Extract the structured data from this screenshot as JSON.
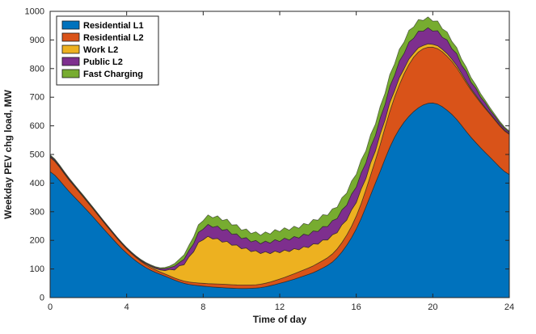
{
  "figure": {
    "background": "#ffffff",
    "axis_color": "#262626"
  },
  "chart_data": {
    "type": "area",
    "stacked": true,
    "title": "",
    "xlabel": "Time of day",
    "ylabel": "Weekday PEV chg load, MW",
    "xlim": [
      0,
      24
    ],
    "ylim": [
      0,
      1000
    ],
    "xticks": [
      0,
      4,
      8,
      12,
      16,
      20,
      24
    ],
    "yticks": [
      0,
      100,
      200,
      300,
      400,
      500,
      600,
      700,
      800,
      900,
      1000
    ],
    "grid": false,
    "legend_position": "top-left",
    "x": [
      0,
      1,
      2,
      3,
      4,
      5,
      6,
      7,
      8,
      9,
      10,
      11,
      12,
      13,
      14,
      15,
      16,
      17,
      18,
      19,
      20,
      21,
      22,
      23,
      24
    ],
    "series": [
      {
        "name": "Residential L1",
        "color": "#0072BD",
        "values": [
          440,
          370,
          300,
          225,
          155,
          105,
          75,
          50,
          40,
          35,
          32,
          35,
          50,
          70,
          95,
          140,
          240,
          400,
          560,
          650,
          680,
          640,
          560,
          490,
          430
        ]
      },
      {
        "name": "Residential L2",
        "color": "#D95319",
        "values": [
          50,
          40,
          30,
          22,
          15,
          10,
          8,
          8,
          10,
          12,
          12,
          12,
          15,
          20,
          25,
          30,
          45,
          80,
          140,
          190,
          195,
          185,
          165,
          150,
          140
        ]
      },
      {
        "name": "Work L2",
        "color": "#EDB120",
        "values": [
          2,
          2,
          2,
          2,
          2,
          3,
          12,
          60,
          155,
          150,
          130,
          110,
          95,
          80,
          70,
          60,
          50,
          35,
          25,
          15,
          10,
          8,
          5,
          3,
          2
        ]
      },
      {
        "name": "Public L2",
        "color": "#7E2F8E",
        "values": [
          4,
          3,
          2,
          2,
          2,
          3,
          6,
          18,
          38,
          42,
          36,
          35,
          40,
          42,
          45,
          50,
          55,
          55,
          55,
          55,
          50,
          40,
          25,
          12,
          6
        ]
      },
      {
        "name": "Fast Charging",
        "color": "#77AC30",
        "values": [
          3,
          2,
          2,
          1,
          1,
          2,
          4,
          15,
          30,
          35,
          30,
          30,
          35,
          35,
          40,
          40,
          45,
          40,
          40,
          40,
          35,
          25,
          15,
          8,
          4
        ]
      }
    ]
  }
}
